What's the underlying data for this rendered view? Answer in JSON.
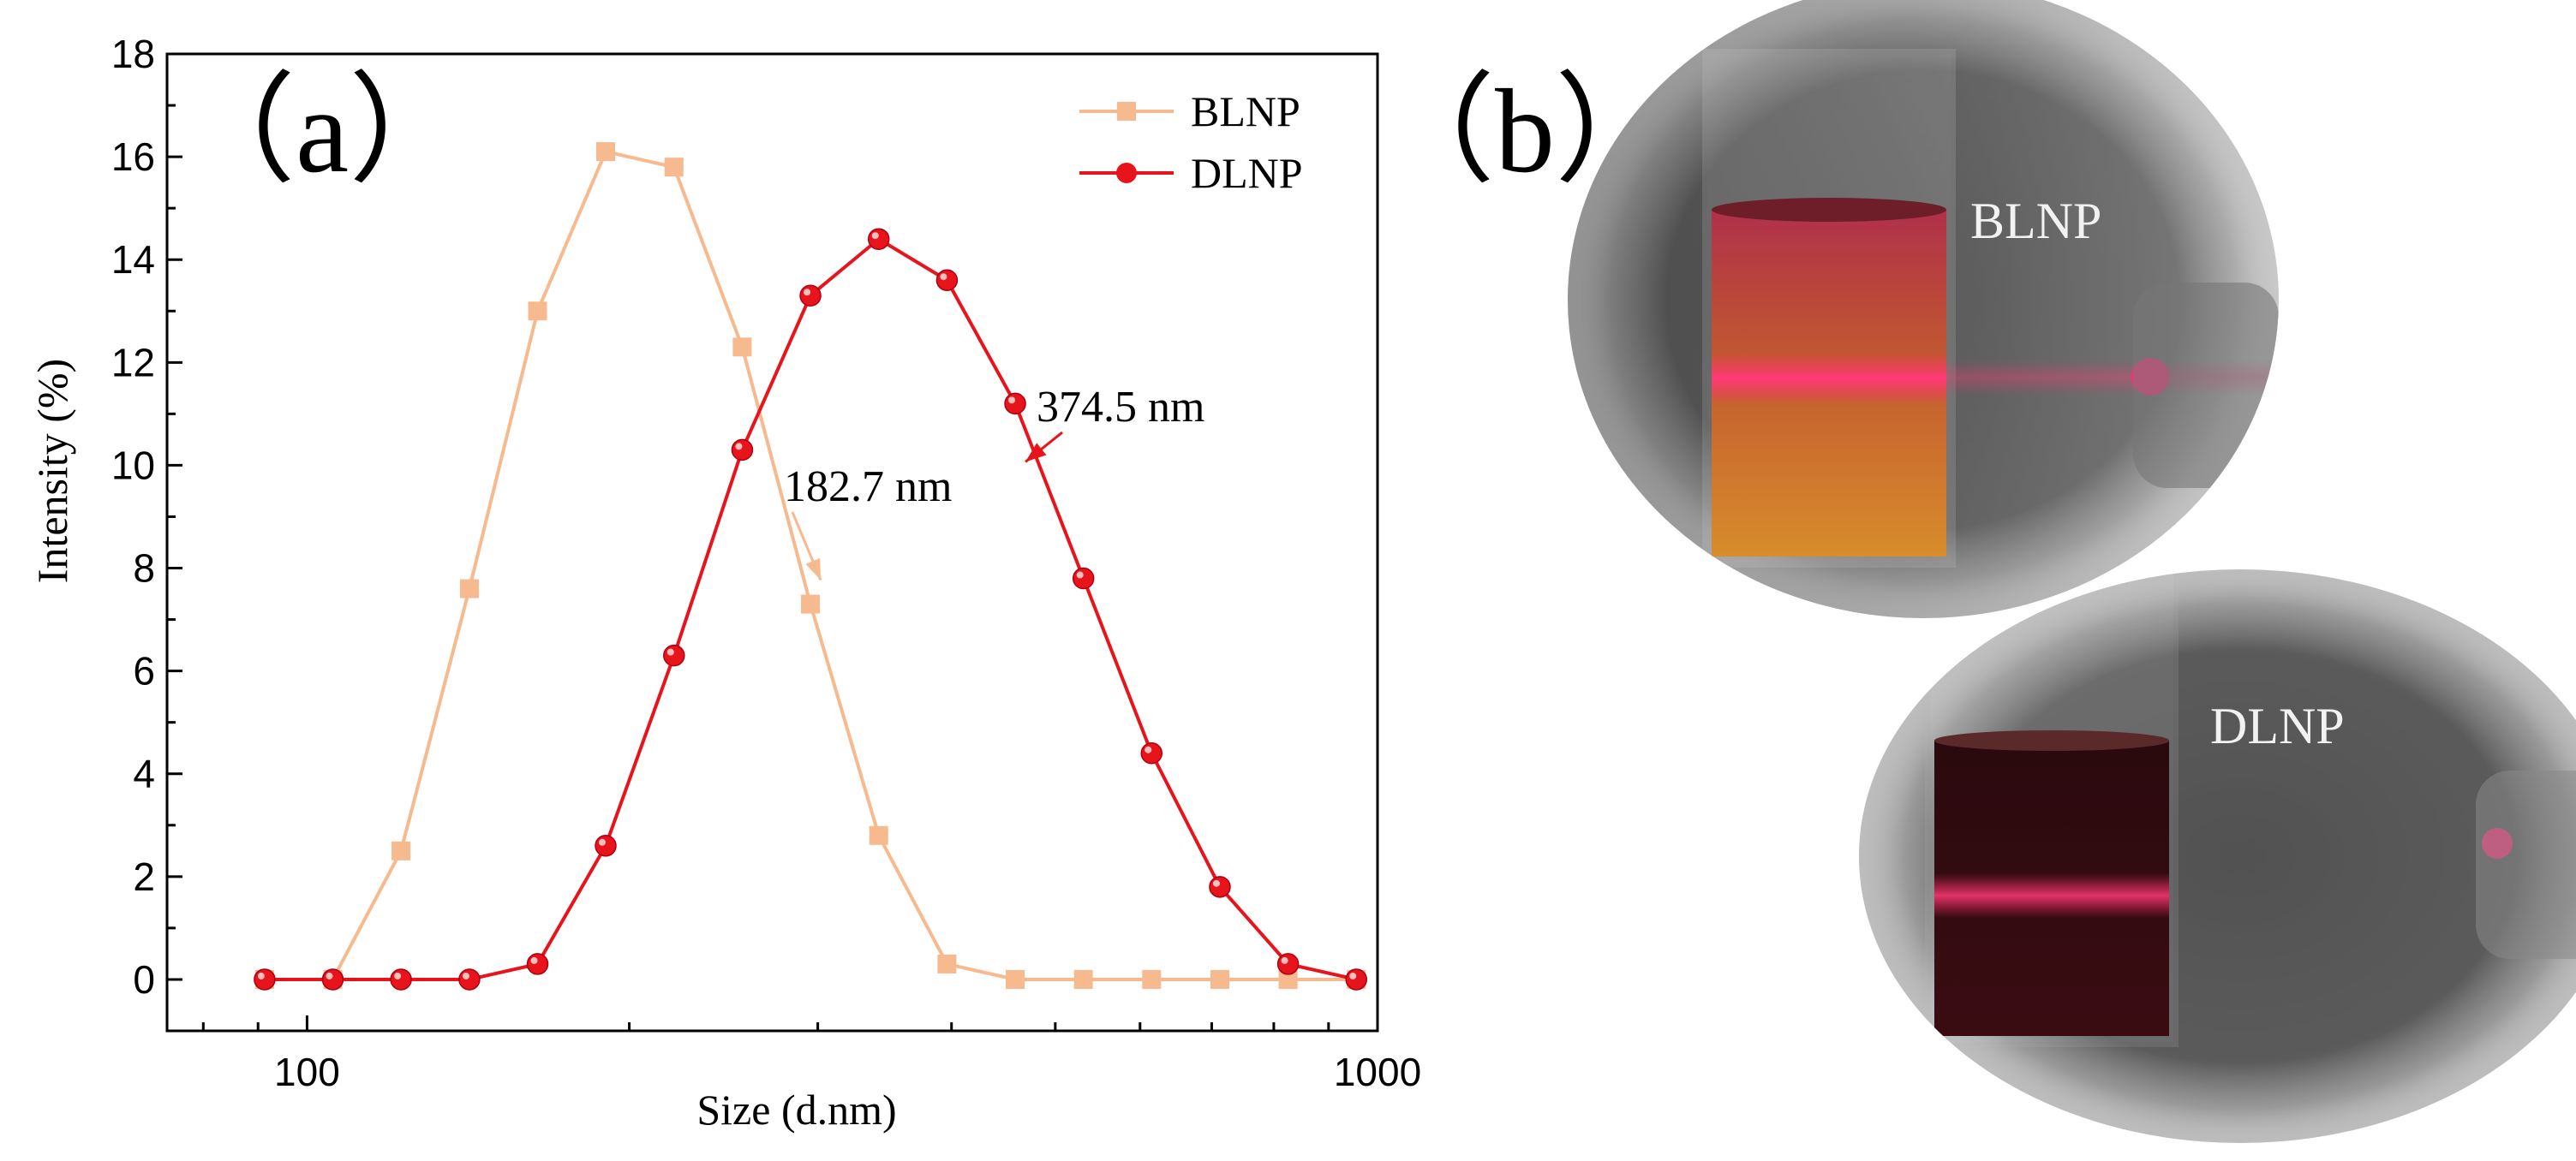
{
  "chart_data": {
    "type": "line",
    "panel_label": "（a）",
    "xlabel": "Size (d.nm)",
    "ylabel": "Intensity (%)",
    "xscale": "log",
    "xlim": [
      74,
      1000
    ],
    "ylim": [
      -1,
      18
    ],
    "xticks": [
      100,
      1000
    ],
    "xtick_labels": [
      "100",
      "1000"
    ],
    "yticks": [
      0,
      2,
      4,
      6,
      8,
      10,
      12,
      14,
      16,
      18
    ],
    "ytick_labels": [
      "0",
      "2",
      "4",
      "6",
      "8",
      "10",
      "12",
      "14",
      "16",
      "18"
    ],
    "legend_position": "top-right",
    "series": [
      {
        "name": "BLNP",
        "color": "#f7b98e",
        "marker": "square",
        "x": [
          91.28,
          105.7,
          122.4,
          141.8,
          164.2,
          190.1,
          220.2,
          255.0,
          295.3,
          342.0,
          396.1,
          458.7,
          531.2,
          615.1,
          712.4,
          825.0,
          955.4
        ],
        "y": [
          0,
          0,
          2.5,
          7.6,
          13.0,
          16.1,
          15.8,
          12.3,
          7.3,
          2.8,
          0.3,
          0,
          0,
          0,
          0,
          0,
          0
        ]
      },
      {
        "name": "DLNP",
        "color": "#e8141c",
        "marker": "circle",
        "x": [
          91.28,
          105.7,
          122.4,
          141.8,
          164.2,
          190.1,
          220.2,
          255.0,
          295.3,
          342.0,
          396.1,
          458.7,
          531.2,
          615.1,
          712.4,
          825.0,
          955.4
        ],
        "y": [
          0,
          0,
          0,
          0,
          0.3,
          2.6,
          6.3,
          10.3,
          13.3,
          14.4,
          13.6,
          11.2,
          7.8,
          4.4,
          1.8,
          0.3,
          0
        ]
      }
    ],
    "annotations": [
      {
        "text": "182.7 nm",
        "series": "BLNP",
        "color": "#f7b98e",
        "target_x": 295.3,
        "target_y": 7.6
      },
      {
        "text": "374.5 nm",
        "series": "DLNP",
        "color": "#e8141c",
        "target_x": 458.7,
        "target_y": 9.9
      }
    ]
  },
  "photos": {
    "panel_label": "（b）",
    "top_label": "BLNP",
    "bottom_label": "DLNP"
  }
}
